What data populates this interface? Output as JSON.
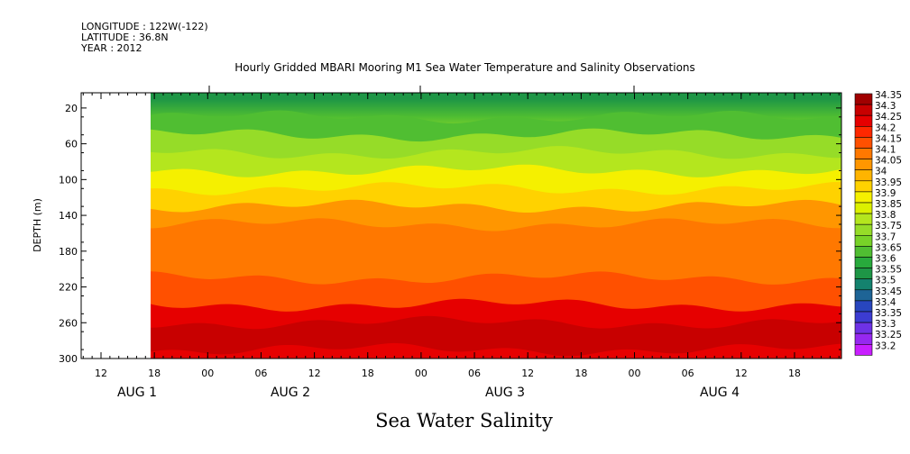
{
  "header": {
    "longitude": "LONGITUDE : 122W(-122)",
    "latitude": "LATITUDE : 36.8N",
    "year": "YEAR : 2012"
  },
  "chart_data": {
    "type": "heatmap",
    "title": "Hourly Gridded MBARI Mooring M1 Sea Water Temperature and Salinity Observations",
    "bottom_title": "Sea Water Salinity",
    "ylabel": "DEPTH (m)",
    "ylim": [
      300,
      0
    ],
    "y_ticks": [
      20,
      60,
      100,
      140,
      180,
      220,
      260,
      300
    ],
    "x_hour_labels": [
      "12",
      "18",
      "00",
      "06",
      "12",
      "18",
      "00",
      "06",
      "12",
      "18",
      "00",
      "06",
      "12",
      "18"
    ],
    "x_day_labels": [
      "AUG 1",
      "AUG 2",
      "AUG 3",
      "AUG 4"
    ],
    "data_start": "AUG 1 18:00",
    "legend_levels": [
      "34.35",
      "34.3",
      "34.25",
      "34.2",
      "34.15",
      "34.1",
      "34.05",
      "34",
      "33.95",
      "33.9",
      "33.85",
      "33.8",
      "33.75",
      "33.7",
      "33.65",
      "33.6",
      "33.55",
      "33.5",
      "33.45",
      "33.4",
      "33.35",
      "33.3",
      "33.25",
      "33.2"
    ],
    "legend_colors": [
      "#a00000",
      "#c80000",
      "#e60000",
      "#ff2800",
      "#ff5000",
      "#ff7800",
      "#ff9600",
      "#ffb400",
      "#ffd200",
      "#f5f000",
      "#dcf000",
      "#b4e61e",
      "#96dc28",
      "#78d228",
      "#50be32",
      "#28aa3c",
      "#1e9646",
      "#14826e",
      "#1e6496",
      "#2846be",
      "#3c3cd2",
      "#6e32e6",
      "#9628f0",
      "#c81eff"
    ],
    "depth_profile": [
      {
        "depth": 10,
        "salinity": 33.55
      },
      {
        "depth": 30,
        "salinity": 33.65
      },
      {
        "depth": 50,
        "salinity": 33.75
      },
      {
        "depth": 70,
        "salinity": 33.82
      },
      {
        "depth": 90,
        "salinity": 33.9
      },
      {
        "depth": 110,
        "salinity": 33.98
      },
      {
        "depth": 130,
        "salinity": 34.05
      },
      {
        "depth": 150,
        "salinity": 34.12
      },
      {
        "depth": 180,
        "salinity": 34.13
      },
      {
        "depth": 210,
        "salinity": 34.18
      },
      {
        "depth": 240,
        "salinity": 34.27
      },
      {
        "depth": 260,
        "salinity": 34.32
      },
      {
        "depth": 290,
        "salinity": 34.25
      }
    ]
  }
}
